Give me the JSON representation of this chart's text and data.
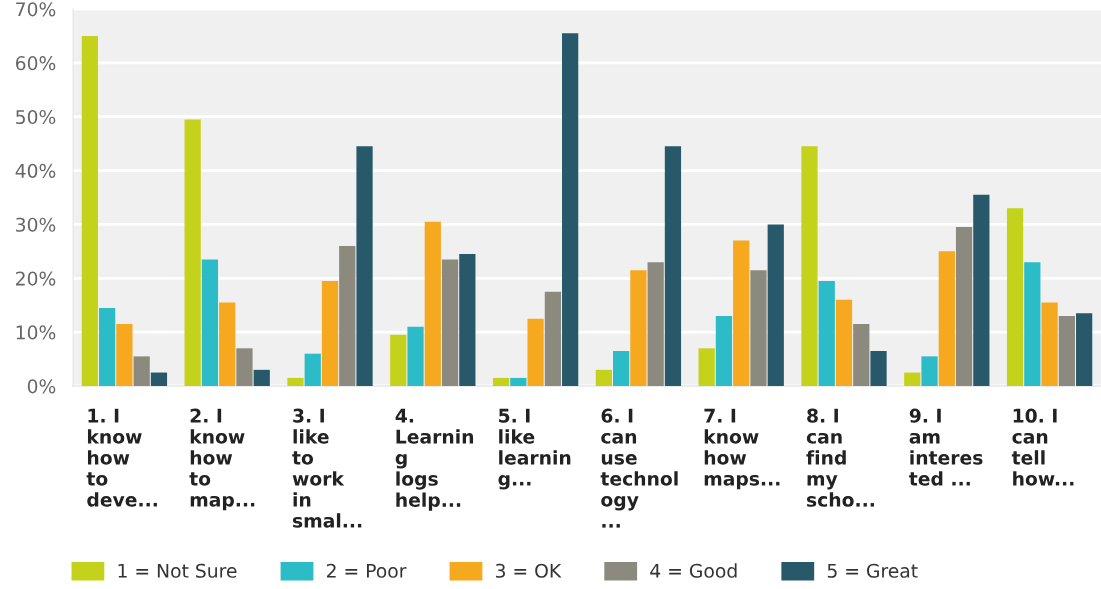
{
  "chart_data": {
    "type": "bar",
    "categories": [
      "1. I\nknow\nhow\nto\ndeve...",
      "2. I\nknow\nhow\nto\nmap...",
      "3. I\nlike\nto\nwork\nin\nsmal...",
      "4.\nLearnin\ng\nlogs\nhelp...",
      "5. I\nlike\nlearnin\ng...",
      "6. I\ncan\nuse\ntechnol\nogy\n...",
      "7. I\nknow\nhow\nmaps...",
      "8. I\ncan\nfind\nmy\nscho...",
      "9. I\nam\ninteres\nted ...",
      "10. I\ncan\ntell\nhow..."
    ],
    "series": [
      {
        "name": "1 = Not Sure",
        "color": "#c5d21b",
        "values": [
          65,
          49.5,
          1.5,
          9.5,
          1.5,
          3,
          7,
          44.5,
          2.5,
          33
        ]
      },
      {
        "name": "2 = Poor",
        "color": "#2bbcc8",
        "values": [
          14.5,
          23.5,
          6,
          11,
          1.5,
          6.5,
          13,
          19.5,
          5.5,
          23
        ]
      },
      {
        "name": "3 = OK",
        "color": "#f6a81f",
        "values": [
          11.5,
          15.5,
          19.5,
          30.5,
          12.5,
          21.5,
          27,
          16,
          25,
          15.5
        ]
      },
      {
        "name": "4 = Good",
        "color": "#8c8a7e",
        "values": [
          5.5,
          7,
          26,
          23.5,
          17.5,
          23,
          21.5,
          11.5,
          29.5,
          13
        ]
      },
      {
        "name": "5 = Great",
        "color": "#27596a",
        "values": [
          2.5,
          3,
          44.5,
          24.5,
          65.5,
          44.5,
          30,
          6.5,
          35.5,
          13.5
        ]
      }
    ],
    "ylim": [
      0,
      70
    ],
    "yticks": [
      {
        "value": 0,
        "label": "0%"
      },
      {
        "value": 10,
        "label": "10%"
      },
      {
        "value": 20,
        "label": "20%"
      },
      {
        "value": 30,
        "label": "30%"
      },
      {
        "value": 40,
        "label": "40%"
      },
      {
        "value": 50,
        "label": "50%"
      },
      {
        "value": 60,
        "label": "60%"
      },
      {
        "value": 70,
        "label": "70%"
      }
    ],
    "grid": "y",
    "legend": "bottom"
  }
}
